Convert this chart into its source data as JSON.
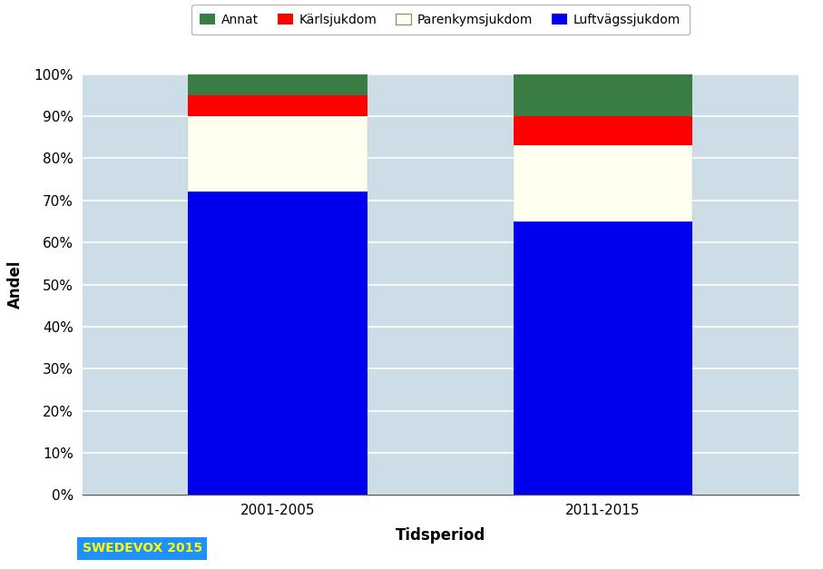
{
  "categories": [
    "2001-2005",
    "2011-2015"
  ],
  "series": {
    "Luftvägssjukdom": [
      72,
      65
    ],
    "Parenkymsjukdom": [
      18,
      18
    ],
    "Kärlsjukdom": [
      5,
      7
    ],
    "Annat": [
      5,
      10
    ]
  },
  "colors": {
    "Luftvägssjukdom": "#0000EE",
    "Parenkymsjukdom": "#FFFFF0",
    "Kärlsjukdom": "#FF0000",
    "Annat": "#3A7D44"
  },
  "legend_order": [
    "Annat",
    "Kärlsjukdom",
    "Parenkymsjukdom",
    "Luftvägssjukdom"
  ],
  "ylabel": "Andel",
  "xlabel": "Tidsperiod",
  "ylim": [
    0,
    100
  ],
  "yticks": [
    0,
    10,
    20,
    30,
    40,
    50,
    60,
    70,
    80,
    90,
    100
  ],
  "ytick_labels": [
    "0%",
    "10%",
    "20%",
    "30%",
    "40%",
    "50%",
    "60%",
    "70%",
    "80%",
    "90%",
    "100%"
  ],
  "outer_bg": "#FFFFFF",
  "plot_area_color": "#CCDDE8",
  "bar_width": 0.55,
  "swedevox_label": "SWEDEVOX 2015",
  "swedevox_bg": "#1E90FF",
  "swedevox_text_color": "#FFFF00",
  "grid_color": "#FFFFFF",
  "parenkym_edge": "#CCCCAA"
}
